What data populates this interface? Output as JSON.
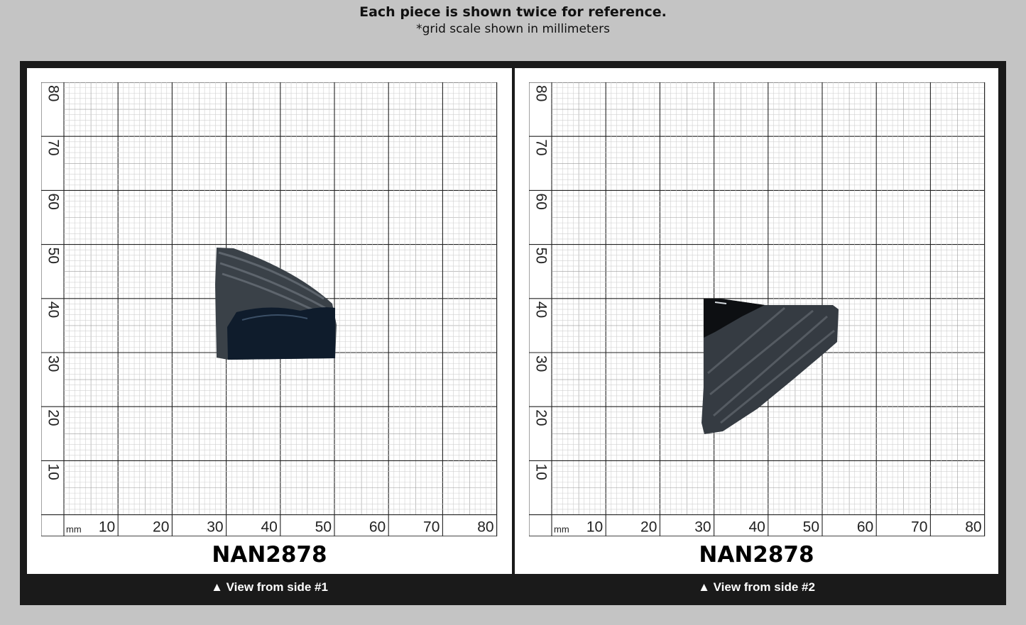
{
  "header": {
    "title": "Each piece is shown twice for reference.",
    "subtitle": "*grid scale shown in millimeters"
  },
  "grid": {
    "unit_label": "mm",
    "x_ticks": [
      "10",
      "20",
      "30",
      "40",
      "50",
      "60",
      "70",
      "80"
    ],
    "y_ticks": [
      "10",
      "20",
      "30",
      "40",
      "50",
      "60",
      "70",
      "80"
    ]
  },
  "panels": [
    {
      "code": "NAN2878",
      "caption": "▲ View from side #1"
    },
    {
      "code": "NAN2878",
      "caption": "▲ View from side #2"
    }
  ],
  "colors": {
    "background": "#c4c4c4",
    "frame": "#1a1a1a",
    "specimen": "#2a3440"
  }
}
